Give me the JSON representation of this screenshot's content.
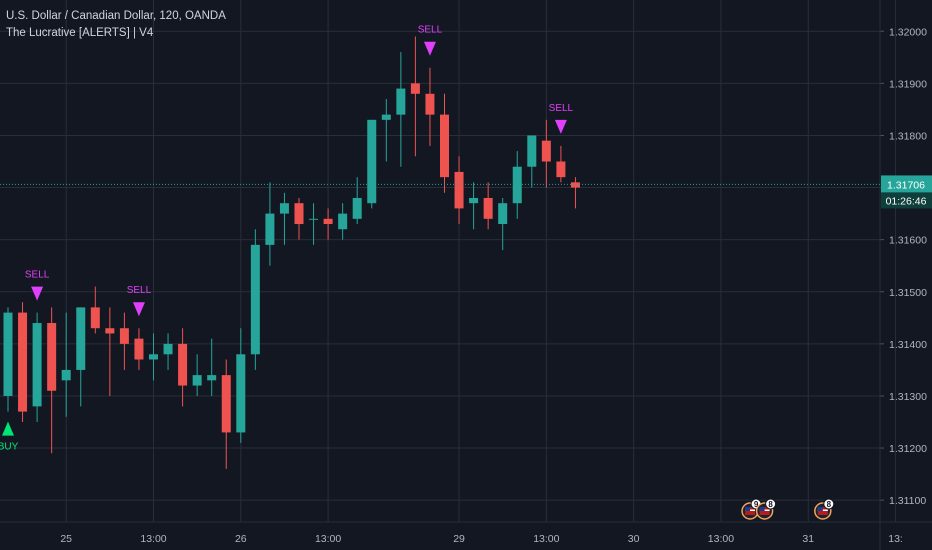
{
  "header": {
    "symbol_line": "U.S. Dollar / Canadian Dollar, 120, OANDA",
    "indicator_line": "The Lucrative [ALERTS] | V4"
  },
  "price_scale": {
    "last_price": "1.31706",
    "countdown": "01:26:46"
  },
  "colors": {
    "background": "#131722",
    "grid": "#2a2e39",
    "up": "#26a69a",
    "down": "#ef5350",
    "sell": "#e040fb",
    "buy": "#00e676",
    "last_price_line": "#26a69a",
    "axis_text": "#b2b5be"
  },
  "chart_data": {
    "type": "candlestick",
    "ylim": [
      1.3106,
      1.3206
    ],
    "y_ticks": [
      "1.31100",
      "1.31200",
      "1.31300",
      "1.31400",
      "1.31500",
      "1.31600",
      "1.31700",
      "1.31800",
      "1.31900",
      "1.32000"
    ],
    "y_tick_values": [
      1.311,
      1.312,
      1.313,
      1.314,
      1.315,
      1.316,
      1.317,
      1.318,
      1.319,
      1.32
    ],
    "x_ticks": [
      {
        "label": "25",
        "bar": 4
      },
      {
        "label": "13:00",
        "bar": 10
      },
      {
        "label": "26",
        "bar": 16
      },
      {
        "label": "13:00",
        "bar": 22
      },
      {
        "label": "29",
        "bar": 31
      },
      {
        "label": "13:00",
        "bar": 37
      },
      {
        "label": "30",
        "bar": 43
      },
      {
        "label": "13:00",
        "bar": 49
      },
      {
        "label": "31",
        "bar": 55
      },
      {
        "label": "13:",
        "bar": 61
      }
    ],
    "candles": [
      {
        "o": 1.313,
        "h": 1.3147,
        "l": 1.3127,
        "c": 1.3146
      },
      {
        "o": 1.3146,
        "h": 1.3148,
        "l": 1.3125,
        "c": 1.3127
      },
      {
        "o": 1.3128,
        "h": 1.3146,
        "l": 1.3125,
        "c": 1.3144
      },
      {
        "o": 1.3144,
        "h": 1.3147,
        "l": 1.3119,
        "c": 1.3131
      },
      {
        "o": 1.3133,
        "h": 1.3146,
        "l": 1.3126,
        "c": 1.3135
      },
      {
        "o": 1.3135,
        "h": 1.3147,
        "l": 1.3128,
        "c": 1.3147
      },
      {
        "o": 1.3147,
        "h": 1.3151,
        "l": 1.3142,
        "c": 1.3143
      },
      {
        "o": 1.3143,
        "h": 1.3147,
        "l": 1.313,
        "c": 1.3142
      },
      {
        "o": 1.3143,
        "h": 1.3146,
        "l": 1.3135,
        "c": 1.314
      },
      {
        "o": 1.3141,
        "h": 1.3143,
        "l": 1.3135,
        "c": 1.3137
      },
      {
        "o": 1.3137,
        "h": 1.3142,
        "l": 1.3133,
        "c": 1.3138
      },
      {
        "o": 1.3138,
        "h": 1.3142,
        "l": 1.3135,
        "c": 1.314
      },
      {
        "o": 1.314,
        "h": 1.3143,
        "l": 1.3128,
        "c": 1.3132
      },
      {
        "o": 1.3132,
        "h": 1.3138,
        "l": 1.313,
        "c": 1.3134
      },
      {
        "o": 1.3133,
        "h": 1.3141,
        "l": 1.313,
        "c": 1.3134
      },
      {
        "o": 1.3134,
        "h": 1.3137,
        "l": 1.3116,
        "c": 1.3123
      },
      {
        "o": 1.3123,
        "h": 1.3143,
        "l": 1.3121,
        "c": 1.3138
      },
      {
        "o": 1.3138,
        "h": 1.3162,
        "l": 1.3135,
        "c": 1.3159
      },
      {
        "o": 1.3159,
        "h": 1.3171,
        "l": 1.3155,
        "c": 1.3165
      },
      {
        "o": 1.3165,
        "h": 1.3169,
        "l": 1.3159,
        "c": 1.3167
      },
      {
        "o": 1.3167,
        "h": 1.3168,
        "l": 1.316,
        "c": 1.3163
      },
      {
        "o": 1.3164,
        "h": 1.3167,
        "l": 1.3159,
        "c": 1.3164
      },
      {
        "o": 1.3164,
        "h": 1.3166,
        "l": 1.316,
        "c": 1.3163
      },
      {
        "o": 1.3162,
        "h": 1.3167,
        "l": 1.316,
        "c": 1.3165
      },
      {
        "o": 1.3164,
        "h": 1.3172,
        "l": 1.3163,
        "c": 1.3168
      },
      {
        "o": 1.3167,
        "h": 1.3183,
        "l": 1.3166,
        "c": 1.3183
      },
      {
        "o": 1.3183,
        "h": 1.3187,
        "l": 1.3175,
        "c": 1.3184
      },
      {
        "o": 1.3184,
        "h": 1.3196,
        "l": 1.3174,
        "c": 1.3189
      },
      {
        "o": 1.319,
        "h": 1.3199,
        "l": 1.3176,
        "c": 1.3188
      },
      {
        "o": 1.3188,
        "h": 1.3193,
        "l": 1.3178,
        "c": 1.3184
      },
      {
        "o": 1.3184,
        "h": 1.3188,
        "l": 1.3169,
        "c": 1.3172
      },
      {
        "o": 1.3173,
        "h": 1.3176,
        "l": 1.3163,
        "c": 1.3166
      },
      {
        "o": 1.3167,
        "h": 1.3171,
        "l": 1.3162,
        "c": 1.3168
      },
      {
        "o": 1.3168,
        "h": 1.3171,
        "l": 1.3162,
        "c": 1.3164
      },
      {
        "o": 1.3163,
        "h": 1.3168,
        "l": 1.3158,
        "c": 1.3167
      },
      {
        "o": 1.3167,
        "h": 1.3177,
        "l": 1.3164,
        "c": 1.3174
      },
      {
        "o": 1.3174,
        "h": 1.318,
        "l": 1.317,
        "c": 1.318
      },
      {
        "o": 1.3179,
        "h": 1.3183,
        "l": 1.317,
        "c": 1.3175
      },
      {
        "o": 1.3175,
        "h": 1.3178,
        "l": 1.3171,
        "c": 1.3172
      },
      {
        "o": 1.3171,
        "h": 1.3172,
        "l": 1.3166,
        "c": 1.317
      }
    ],
    "signals": [
      {
        "type": "buy",
        "label": "BUY",
        "bar": 0
      },
      {
        "type": "sell",
        "label": "SELL",
        "bar": 2
      },
      {
        "type": "sell",
        "label": "SELL",
        "bar": 9
      },
      {
        "type": "sell",
        "label": "SELL",
        "bar": 29
      },
      {
        "type": "sell",
        "label": "SELL",
        "bar": 38
      }
    ],
    "event_badges": [
      {
        "icon": "us-flag-icon",
        "count": "9",
        "bar": 51
      },
      {
        "icon": "us-flag-icon",
        "count": "8",
        "bar": 52
      },
      {
        "icon": "us-flag-icon",
        "count": "8",
        "bar": 56
      }
    ]
  }
}
